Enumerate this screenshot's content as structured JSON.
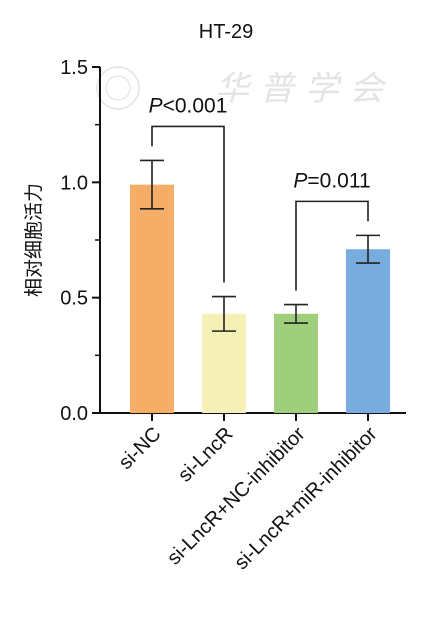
{
  "chart_data": {
    "type": "bar",
    "title": "HT-29",
    "ylabel": "相对细胞活力",
    "xlabel": "",
    "ylim": [
      0,
      1.5
    ],
    "yticks": [
      "0.0",
      "0.5",
      "1.0",
      "1.5"
    ],
    "grid": false,
    "categories": [
      "si-NC",
      "si-LncR",
      "si-LncR+NC-inhibitor",
      "si-LncR+miR-inhibitor"
    ],
    "values": [
      0.99,
      0.43,
      0.43,
      0.71
    ],
    "errors": [
      0.105,
      0.075,
      0.04,
      0.06
    ],
    "colors": [
      "#f5ad68",
      "#f5f0b5",
      "#9fcf7d",
      "#78acdf"
    ],
    "annotations": [
      {
        "from": 0,
        "to": 1,
        "p_symbol": "P",
        "p_text": "<0.001"
      },
      {
        "from": 2,
        "to": 3,
        "p_symbol": "P",
        "p_text": "=0.011"
      }
    ]
  },
  "watermark": {
    "text": "华 普 学 会"
  }
}
